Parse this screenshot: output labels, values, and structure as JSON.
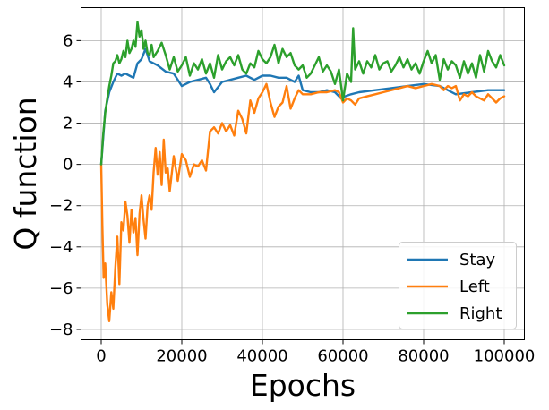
{
  "chart_data": {
    "type": "line",
    "xlabel": "Epochs",
    "ylabel": "Q function",
    "xlim": [
      -5000,
      105000
    ],
    "ylim": [
      -8.5,
      7.6
    ],
    "xticks": [
      0,
      20000,
      40000,
      60000,
      80000,
      100000
    ],
    "yticks": [
      -8,
      -6,
      -4,
      -2,
      0,
      2,
      4,
      6
    ],
    "xtick_labels": [
      "0",
      "20000",
      "40000",
      "60000",
      "80000",
      "100000"
    ],
    "ytick_labels": [
      "−8",
      "−6",
      "−4",
      "−2",
      "0",
      "2",
      "4",
      "6"
    ],
    "grid": true,
    "legend_position": "bottom-right",
    "series": [
      {
        "name": "Stay",
        "color": "#1f77b4",
        "x": [
          0,
          1000,
          2000,
          3000,
          4000,
          5000,
          6000,
          7000,
          8000,
          9000,
          10000,
          11000,
          12000,
          13000,
          14000,
          16000,
          18000,
          20000,
          22000,
          24000,
          26000,
          27000,
          28000,
          30000,
          32000,
          34000,
          36000,
          38000,
          40000,
          42000,
          44000,
          46000,
          48000,
          49000,
          50000,
          52000,
          54000,
          56000,
          58000,
          59500,
          60500,
          62000,
          64000,
          68000,
          72000,
          76000,
          80000,
          84000,
          86000,
          88000,
          92000,
          96000,
          100000
        ],
        "y": [
          0,
          2.6,
          3.5,
          4.0,
          4.4,
          4.3,
          4.4,
          4.3,
          4.2,
          4.9,
          5.1,
          5.6,
          5.0,
          4.9,
          4.8,
          4.5,
          4.4,
          3.8,
          4.0,
          4.1,
          4.2,
          3.9,
          3.5,
          4.0,
          4.1,
          4.2,
          4.3,
          4.1,
          4.3,
          4.3,
          4.2,
          4.2,
          4.0,
          4.3,
          3.6,
          3.5,
          3.5,
          3.6,
          3.5,
          3.2,
          3.3,
          3.4,
          3.5,
          3.6,
          3.7,
          3.8,
          3.9,
          3.8,
          3.6,
          3.4,
          3.5,
          3.6,
          3.6
        ]
      },
      {
        "name": "Left",
        "color": "#ff7f0e",
        "x": [
          0,
          300,
          600,
          1000,
          1500,
          2000,
          2500,
          3000,
          3500,
          4000,
          4500,
          5000,
          5500,
          6000,
          6500,
          7000,
          7500,
          8000,
          8500,
          9000,
          9500,
          10000,
          10500,
          11000,
          11500,
          12000,
          12500,
          13000,
          13500,
          14000,
          14500,
          15000,
          15500,
          16000,
          16500,
          17000,
          18000,
          19000,
          20000,
          21000,
          22000,
          23000,
          24000,
          25000,
          26000,
          27000,
          28000,
          29000,
          30000,
          31000,
          32000,
          33000,
          34000,
          35000,
          36000,
          37000,
          38000,
          39000,
          40000,
          41000,
          42000,
          43000,
          44000,
          45000,
          46000,
          47000,
          48000,
          49000,
          50000,
          52000,
          54000,
          56000,
          58000,
          59000,
          60000,
          61000,
          62000,
          63000,
          64000,
          66000,
          68000,
          70000,
          72000,
          74000,
          76000,
          78000,
          80000,
          82000,
          84000,
          85000,
          86000,
          87000,
          88000,
          89000,
          90000,
          91000,
          92000,
          93000,
          94000,
          95000,
          96000,
          97000,
          98000,
          99000,
          100000
        ],
        "y": [
          0,
          -3.0,
          -5.5,
          -4.8,
          -6.8,
          -7.6,
          -6.2,
          -7.0,
          -5.0,
          -3.5,
          -5.8,
          -2.8,
          -3.2,
          -1.8,
          -2.5,
          -3.8,
          -2.2,
          -3.3,
          -2.6,
          -4.4,
          -2.4,
          -1.5,
          -2.7,
          -3.6,
          -2.0,
          -1.5,
          -2.2,
          -0.4,
          0.8,
          -0.5,
          0.6,
          -1.0,
          1.2,
          -0.4,
          -0.2,
          -1.3,
          0.4,
          -0.8,
          0.5,
          0.2,
          -0.6,
          0.0,
          -0.1,
          0.2,
          -0.3,
          1.6,
          1.8,
          1.5,
          2.0,
          1.6,
          1.9,
          1.4,
          2.6,
          2.2,
          1.5,
          3.1,
          2.5,
          3.2,
          3.5,
          3.9,
          3.0,
          2.3,
          2.8,
          3.0,
          3.8,
          2.7,
          3.2,
          3.6,
          3.4,
          3.4,
          3.5,
          3.5,
          3.6,
          3.5,
          3.0,
          3.2,
          3.1,
          2.9,
          3.2,
          3.3,
          3.4,
          3.5,
          3.6,
          3.7,
          3.8,
          3.7,
          3.8,
          3.9,
          3.8,
          3.6,
          3.8,
          3.7,
          3.8,
          3.1,
          3.4,
          3.3,
          3.5,
          3.3,
          3.2,
          3.1,
          3.4,
          3.2,
          3.0,
          3.2,
          3.3
        ]
      },
      {
        "name": "Right",
        "color": "#2ca02c",
        "x": [
          0,
          500,
          1000,
          1500,
          2000,
          2500,
          3000,
          3500,
          4000,
          4500,
          5000,
          5500,
          6000,
          6500,
          7000,
          7500,
          8000,
          8500,
          9000,
          9500,
          10000,
          10500,
          11000,
          11500,
          12000,
          12500,
          13000,
          14000,
          15000,
          16000,
          17000,
          18000,
          19000,
          20000,
          21000,
          22000,
          23000,
          24000,
          25000,
          26000,
          27000,
          28000,
          29000,
          30000,
          31000,
          32000,
          33000,
          34000,
          35000,
          36000,
          37000,
          38000,
          39000,
          40000,
          41000,
          42000,
          43000,
          44000,
          45000,
          46000,
          47000,
          48000,
          49000,
          50000,
          51000,
          52000,
          53000,
          54000,
          55000,
          56000,
          57000,
          58000,
          59000,
          60000,
          61000,
          62000,
          62500,
          63000,
          64000,
          65000,
          66000,
          67000,
          68000,
          69000,
          70000,
          71000,
          72000,
          73000,
          74000,
          75000,
          76000,
          77000,
          78000,
          79000,
          80000,
          81000,
          82000,
          83000,
          84000,
          85000,
          86000,
          87000,
          88000,
          89000,
          90000,
          91000,
          92000,
          93000,
          94000,
          95000,
          96000,
          97000,
          98000,
          99000,
          100000
        ],
        "y": [
          0,
          1.5,
          2.5,
          3.2,
          3.8,
          4.3,
          4.9,
          5.0,
          5.3,
          4.9,
          5.1,
          5.5,
          5.2,
          6.0,
          5.4,
          5.6,
          6.0,
          5.7,
          6.9,
          6.2,
          6.5,
          5.6,
          6.0,
          5.4,
          5.3,
          5.8,
          5.2,
          5.5,
          5.9,
          5.3,
          4.6,
          5.2,
          4.5,
          4.8,
          5.2,
          4.3,
          4.9,
          4.6,
          5.1,
          4.4,
          4.9,
          4.2,
          5.3,
          4.6,
          5.0,
          5.2,
          4.8,
          5.3,
          4.6,
          4.4,
          4.9,
          4.7,
          5.5,
          5.1,
          4.9,
          5.2,
          5.8,
          4.9,
          5.6,
          5.2,
          5.4,
          4.8,
          4.6,
          4.8,
          4.2,
          4.4,
          4.8,
          5.2,
          4.5,
          4.8,
          4.5,
          3.9,
          4.6,
          3.1,
          4.4,
          4.0,
          6.6,
          4.6,
          5.0,
          4.4,
          5.0,
          4.7,
          5.3,
          4.6,
          4.9,
          5.0,
          4.5,
          4.8,
          5.2,
          4.7,
          5.1,
          4.6,
          4.9,
          4.4,
          5.0,
          5.5,
          4.9,
          5.3,
          4.1,
          5.1,
          4.6,
          5.0,
          4.8,
          4.2,
          5.0,
          4.4,
          4.9,
          4.2,
          5.3,
          4.5,
          5.5,
          5.0,
          4.7,
          5.3,
          4.8
        ]
      }
    ]
  }
}
